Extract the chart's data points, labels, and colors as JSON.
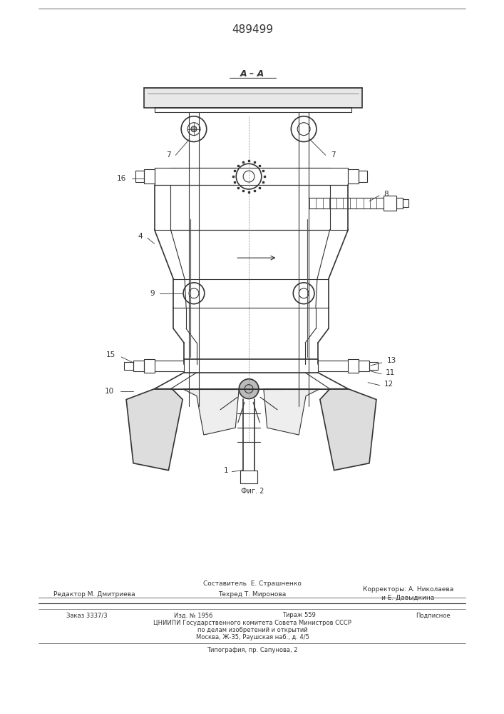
{
  "patent_number": "489499",
  "bg_color": "#ffffff",
  "line_color": "#333333",
  "fig_label": "Фиг. 2",
  "title": "A – A",
  "bottom_texts": {
    "line1": "Составитель  Е. Страшненко",
    "editor": "Редактор М. Дмитриева",
    "tech": "Техред Т. Миронова",
    "corr1": "Корректоры: А. Николаева",
    "corr2": "и Е. Давыдкина",
    "order": "Заказ 3337/3",
    "izd": "Изд. № 1956",
    "tirazh": "Тираж 559",
    "podp": "Подписное",
    "cniipи": "ЦНИИПИ Государственного комитета Совета Министров СССР",
    "po_delam": "по делам изобретений и открытий",
    "moscow": "Москва, Ж-35, Раушская наб., д. 4/5",
    "tipografia": "Типография, пр. Сапунова, 2"
  }
}
